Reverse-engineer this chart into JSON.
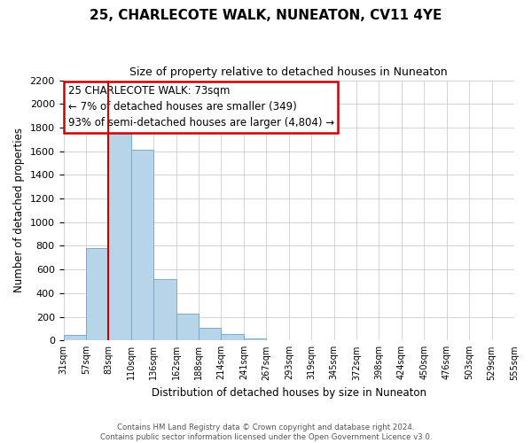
{
  "title": "25, CHARLECOTE WALK, NUNEATON, CV11 4YE",
  "subtitle": "Size of property relative to detached houses in Nuneaton",
  "bar_values": [
    50,
    780,
    1820,
    1610,
    520,
    230,
    105,
    55,
    20,
    0,
    0,
    0,
    0,
    0,
    0,
    0,
    0,
    0,
    0,
    0
  ],
  "bar_labels": [
    "31sqm",
    "57sqm",
    "83sqm",
    "110sqm",
    "136sqm",
    "162sqm",
    "188sqm",
    "214sqm",
    "241sqm",
    "267sqm",
    "293sqm",
    "319sqm",
    "345sqm",
    "372sqm",
    "398sqm",
    "424sqm",
    "450sqm",
    "476sqm",
    "503sqm",
    "529sqm",
    "555sqm"
  ],
  "bar_color": "#b8d4e8",
  "bar_edge_color": "#7aaac8",
  "vline_color": "#cc0000",
  "ylabel": "Number of detached properties",
  "xlabel": "Distribution of detached houses by size in Nuneaton",
  "ylim": [
    0,
    2200
  ],
  "yticks": [
    0,
    200,
    400,
    600,
    800,
    1000,
    1200,
    1400,
    1600,
    1800,
    2000,
    2200
  ],
  "annotation_title": "25 CHARLECOTE WALK: 73sqm",
  "annotation_line1": "← 7% of detached houses are smaller (349)",
  "annotation_line2": "93% of semi-detached houses are larger (4,804) →",
  "annotation_box_color": "#ffffff",
  "annotation_border_color": "#cc0000",
  "footer_line1": "Contains HM Land Registry data © Crown copyright and database right 2024.",
  "footer_line2": "Contains public sector information licensed under the Open Government Licence v3.0.",
  "bg_color": "#ffffff",
  "grid_color": "#cccccc"
}
